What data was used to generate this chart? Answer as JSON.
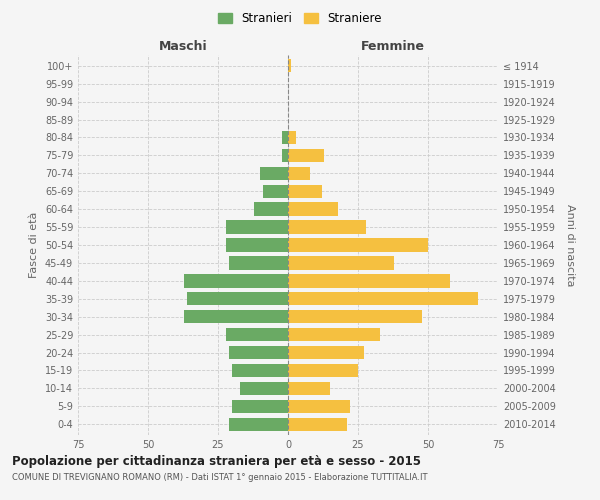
{
  "age_groups": [
    "0-4",
    "5-9",
    "10-14",
    "15-19",
    "20-24",
    "25-29",
    "30-34",
    "35-39",
    "40-44",
    "45-49",
    "50-54",
    "55-59",
    "60-64",
    "65-69",
    "70-74",
    "75-79",
    "80-84",
    "85-89",
    "90-94",
    "95-99",
    "100+"
  ],
  "birth_years": [
    "2010-2014",
    "2005-2009",
    "2000-2004",
    "1995-1999",
    "1990-1994",
    "1985-1989",
    "1980-1984",
    "1975-1979",
    "1970-1974",
    "1965-1969",
    "1960-1964",
    "1955-1959",
    "1950-1954",
    "1945-1949",
    "1940-1944",
    "1935-1939",
    "1930-1934",
    "1925-1929",
    "1920-1924",
    "1915-1919",
    "≤ 1914"
  ],
  "maschi": [
    21,
    20,
    17,
    20,
    21,
    22,
    37,
    36,
    37,
    21,
    22,
    22,
    12,
    9,
    10,
    2,
    2,
    0,
    0,
    0,
    0
  ],
  "femmine": [
    21,
    22,
    15,
    25,
    27,
    33,
    48,
    68,
    58,
    38,
    50,
    28,
    18,
    12,
    8,
    13,
    3,
    0,
    0,
    0,
    1
  ],
  "maschi_color": "#6aaa64",
  "femmine_color": "#f5c040",
  "background_color": "#f5f5f5",
  "title": "Popolazione per cittadinanza straniera per età e sesso - 2015",
  "subtitle": "COMUNE DI TREVIGNANO ROMANO (RM) - Dati ISTAT 1° gennaio 2015 - Elaborazione TUTTITALIA.IT",
  "xlabel_left": "Maschi",
  "xlabel_right": "Femmine",
  "ylabel_left": "Fasce di età",
  "ylabel_right": "Anni di nascita",
  "xlim": 75,
  "legend_stranieri": "Stranieri",
  "legend_straniere": "Straniere",
  "grid_color": "#cccccc"
}
